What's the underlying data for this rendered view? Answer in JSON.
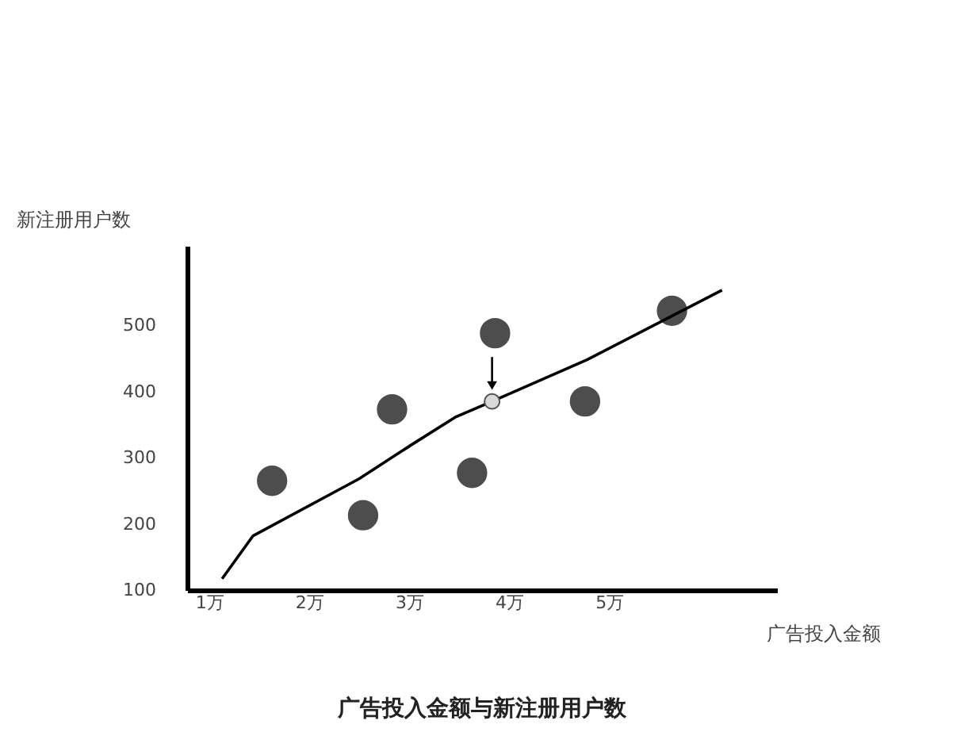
{
  "chart_data": {
    "type": "scatter",
    "title": "广告投入金额与新注册用户数",
    "xlabel": "广告投入金额",
    "ylabel": "新注册用户数",
    "xlim": [
      0.78,
      6.68
    ],
    "ylim": [
      100,
      620
    ],
    "xticks": [
      {
        "value": 1,
        "label": "1万"
      },
      {
        "value": 2,
        "label": "2万"
      },
      {
        "value": 3,
        "label": "3万"
      },
      {
        "value": 4,
        "label": "4万"
      },
      {
        "value": 5,
        "label": "5万"
      }
    ],
    "yticks": [
      100,
      200,
      300,
      400,
      500
    ],
    "grid": false,
    "marker": "circle",
    "series": [
      {
        "color": "#4d4d4d",
        "x": [
          1.63,
          2.54,
          2.83,
          3.63,
          3.86,
          4.76,
          5.63
        ],
        "values": [
          265,
          213,
          373,
          277,
          488,
          385,
          522
        ]
      },
      {
        "type": "line",
        "color": "#000000",
        "marker": "none",
        "x": [
          1.13,
          1.44,
          2.5,
          3.03,
          3.46,
          3.83,
          4.78,
          6.13
        ],
        "values": [
          117,
          182,
          268,
          320,
          361,
          385,
          448,
          553
        ]
      },
      {
        "color": "#d9d9d9",
        "x": [
          3.83
        ],
        "values": [
          385
        ]
      }
    ]
  }
}
